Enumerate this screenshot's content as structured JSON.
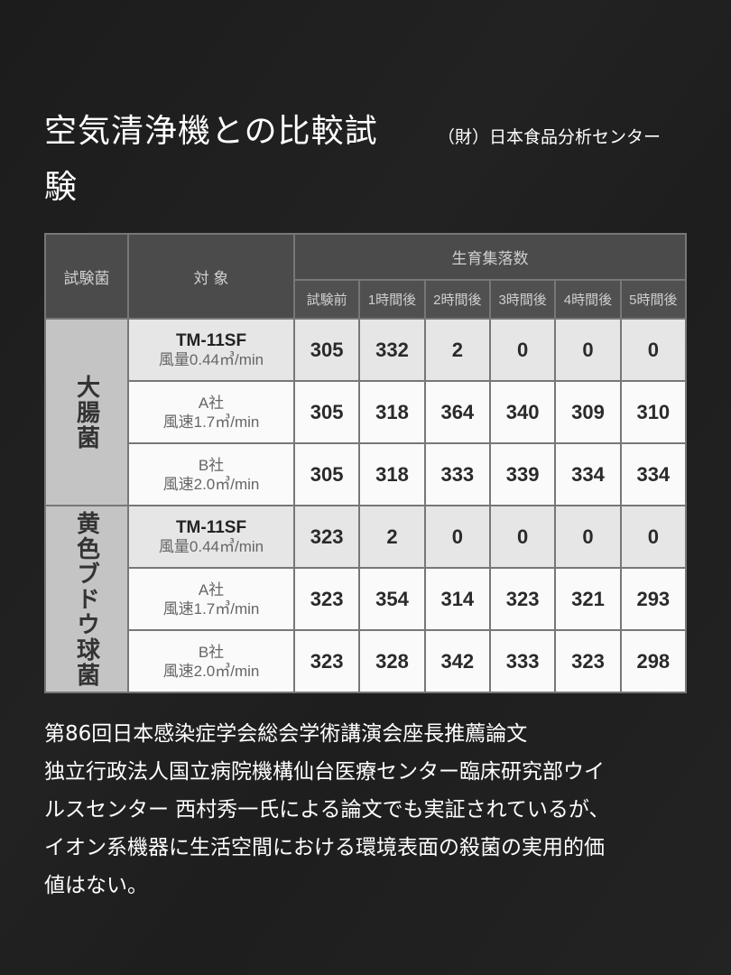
{
  "title": "空気清浄機との比較試験",
  "source": "（財）日本食品分析センター",
  "table": {
    "headers": {
      "bacteria": "試験菌",
      "target": "対 象",
      "colonies": "生育集落数",
      "times": [
        "試験前",
        "1時間後",
        "2時間後",
        "3時間後",
        "4時間後",
        "5時間後"
      ]
    },
    "groups": [
      {
        "name": "大腸菌",
        "rows": [
          {
            "name": "TM-11SF",
            "spec": "風量0.44㎥/min",
            "values": [
              "305",
              "332",
              "2",
              "0",
              "0",
              "0"
            ]
          },
          {
            "name": "A社",
            "spec": "風速1.7㎥/min",
            "values": [
              "305",
              "318",
              "364",
              "340",
              "309",
              "310"
            ]
          },
          {
            "name": "B社",
            "spec": "風速2.0㎥/min",
            "values": [
              "305",
              "318",
              "333",
              "339",
              "334",
              "334"
            ]
          }
        ]
      },
      {
        "name": "黄色ブドウ球菌",
        "rows": [
          {
            "name": "TM-11SF",
            "spec": "風量0.44㎥/min",
            "values": [
              "323",
              "2",
              "0",
              "0",
              "0",
              "0"
            ]
          },
          {
            "name": "A社",
            "spec": "風速1.7㎥/min",
            "values": [
              "323",
              "354",
              "314",
              "323",
              "321",
              "293"
            ]
          },
          {
            "name": "B社",
            "spec": "風速2.0㎥/min",
            "values": [
              "323",
              "328",
              "342",
              "333",
              "323",
              "298"
            ]
          }
        ]
      }
    ]
  },
  "body_lines": [
    "第86回日本感染症学会総会学術講演会座長推薦論文",
    "独立行政法人国立病院機構仙台医療センター臨床研究部ウイ",
    "ルスセンター 西村秀一氏による論文でも実証されているが、",
    "イオン系機器に生活空間における環境表面の殺菌の実用的価",
    "値はない。"
  ]
}
